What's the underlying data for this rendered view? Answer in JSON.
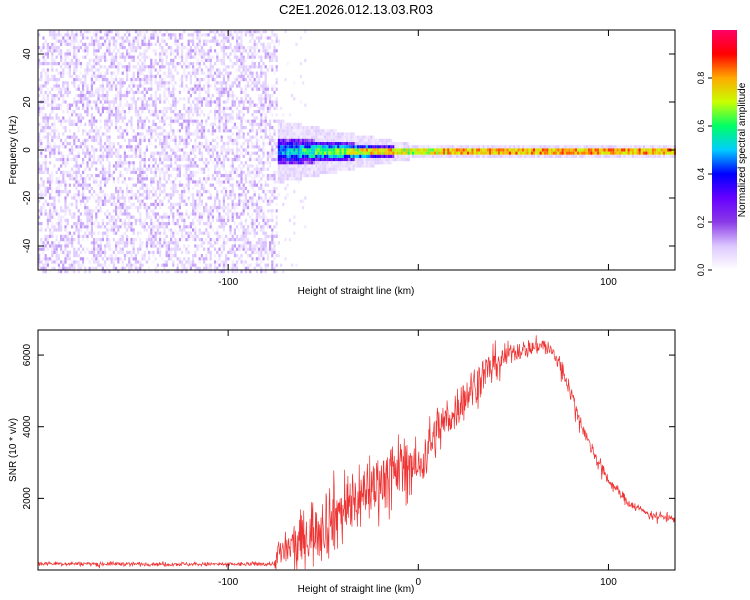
{
  "figure": {
    "title": "C2E1.2026.012.13.03.R03"
  },
  "chart_data": [
    {
      "type": "heatmap",
      "name": "spectrogram",
      "xlabel": "Height of straight line (km)",
      "ylabel": "Frequency (Hz)",
      "xlim": [
        -200,
        135
      ],
      "ylim": [
        -50,
        50
      ],
      "xticks": [
        -100,
        0,
        100
      ],
      "xtick_labels": [
        "-100",
        "",
        "100"
      ],
      "yticks": [
        -40,
        -20,
        0,
        20,
        40
      ],
      "ytick_labels": [
        "-40",
        "-20",
        "0",
        "20",
        "40"
      ],
      "noise_region_x": [
        -200,
        -75
      ],
      "signal_band": {
        "x": [
          -75,
          135
        ],
        "center_freq": 0,
        "spread_near": 6,
        "spread_far": 1.5
      },
      "colorbar": {
        "label": "Normalized spectral amplitude",
        "ticks": [
          0.0,
          0.2,
          0.4,
          0.6,
          0.8
        ],
        "tick_labels": [
          "0.0",
          "0.2",
          "0.4",
          "0.6",
          "0.8"
        ],
        "range": [
          0,
          1
        ],
        "colormap": [
          "#ffffff",
          "#ddc8ff",
          "#8a3ae6",
          "#6600ff",
          "#0000ff",
          "#00ccff",
          "#00ff66",
          "#c8ff00",
          "#ffaa00",
          "#ff0000",
          "#ff0066"
        ]
      }
    },
    {
      "type": "line",
      "name": "snr",
      "xlabel": "Height of straight line (km)",
      "ylabel": "SNR (10 * v/v)",
      "xlim": [
        -200,
        135
      ],
      "ylim": [
        0,
        6700
      ],
      "xticks": [
        -100,
        0,
        100
      ],
      "xtick_labels": [
        "-100",
        "0",
        "100"
      ],
      "yticks": [
        2000,
        4000,
        6000
      ],
      "ytick_labels": [
        "2000",
        "4000",
        "6000"
      ],
      "color": "#ee3333",
      "x": [
        -200,
        -150,
        -100,
        -76,
        -74,
        -65,
        -55,
        -45,
        -35,
        -25,
        -15,
        -5,
        0,
        5,
        10,
        20,
        30,
        40,
        50,
        60,
        65,
        70,
        75,
        80,
        85,
        90,
        100,
        110,
        120,
        135
      ],
      "y": [
        180,
        170,
        160,
        170,
        400,
        700,
        1100,
        1500,
        1900,
        2300,
        2700,
        3000,
        2800,
        3400,
        3900,
        4500,
        5200,
        5800,
        6100,
        6200,
        6300,
        6100,
        5700,
        5000,
        4200,
        3500,
        2500,
        1900,
        1600,
        1400
      ],
      "noise": [
        60,
        60,
        60,
        60,
        500,
        700,
        1000,
        1100,
        1100,
        1000,
        900,
        900,
        700,
        800,
        700,
        600,
        600,
        500,
        300,
        250,
        250,
        300,
        300,
        250,
        220,
        200,
        160,
        140,
        120,
        120
      ]
    }
  ]
}
